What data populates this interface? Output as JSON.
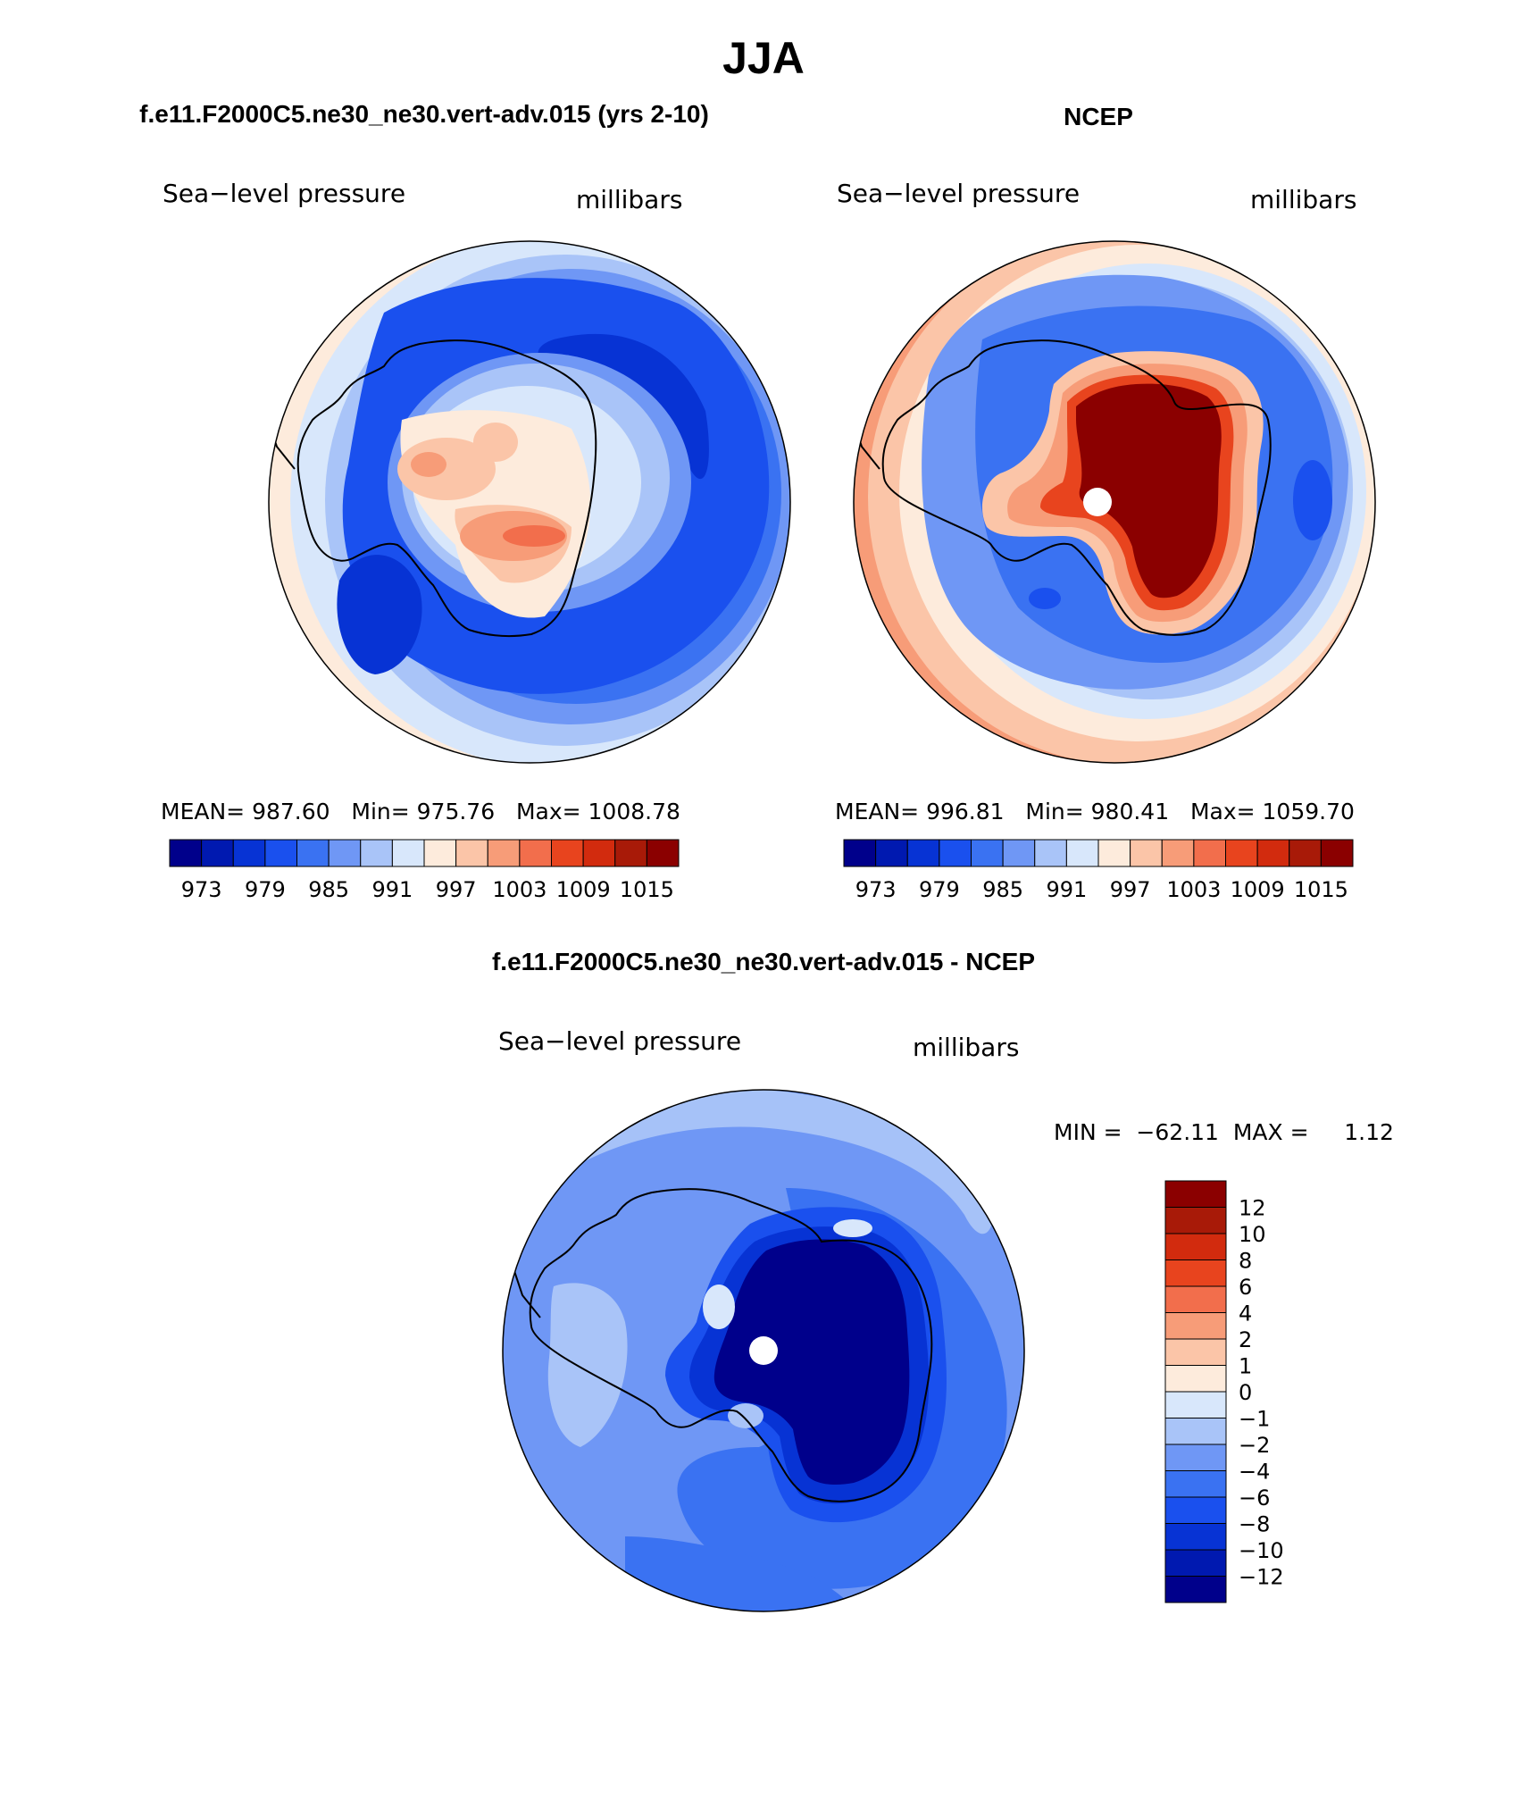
{
  "title": "JJA",
  "palette": {
    "abs": [
      "#00008b",
      "#0019b0",
      "#0733d4",
      "#1a50ee",
      "#3a72f2",
      "#6f97f5",
      "#a9c4f8",
      "#d8e7fb",
      "#fdebdc",
      "#fbc5a8",
      "#f79c78",
      "#f26e4c",
      "#e8441e",
      "#d22b0e",
      "#a81a08",
      "#8b0000"
    ],
    "diff": [
      "#00008b",
      "#0019b0",
      "#0733d4",
      "#1a50ee",
      "#3a72f2",
      "#6f97f5",
      "#a9c4f8",
      "#d8e7fb",
      "#fdebdc",
      "#fbc5a8",
      "#f79c78",
      "#f26e4c",
      "#e8441e",
      "#d22b0e",
      "#a81a08",
      "#8b0000"
    ]
  },
  "panels": [
    {
      "id": "model",
      "header": "f.e11.F2000C5.ne30_ne30.vert-adv.015 (yrs 2-10)",
      "left_label": "Sea−level pressure",
      "right_label": "millibars",
      "stats": "MEAN= 987.60   Min= 975.76   Max= 1008.78",
      "colorbar_ticks": [
        "973",
        "979",
        "985",
        "991",
        "997",
        "1003",
        "1009",
        "1015"
      ]
    },
    {
      "id": "obs",
      "header": "NCEP",
      "left_label": "Sea−level pressure",
      "right_label": "millibars",
      "stats": "MEAN= 996.81   Min= 980.41   Max= 1059.70",
      "colorbar_ticks": [
        "973",
        "979",
        "985",
        "991",
        "997",
        "1003",
        "1009",
        "1015"
      ]
    },
    {
      "id": "diff",
      "header": "f.e11.F2000C5.ne30_ne30.vert-adv.015 - NCEP",
      "left_label": "Sea−level pressure",
      "right_label": "millibars",
      "stats": "MIN =  −62.11  MAX =     1.12",
      "colorbar_ticks": [
        "12",
        "10",
        "8",
        "6",
        "4",
        "2",
        "1",
        "0",
        "−1",
        "−2",
        "−4",
        "−6",
        "−8",
        "−10",
        "−12"
      ]
    }
  ]
}
